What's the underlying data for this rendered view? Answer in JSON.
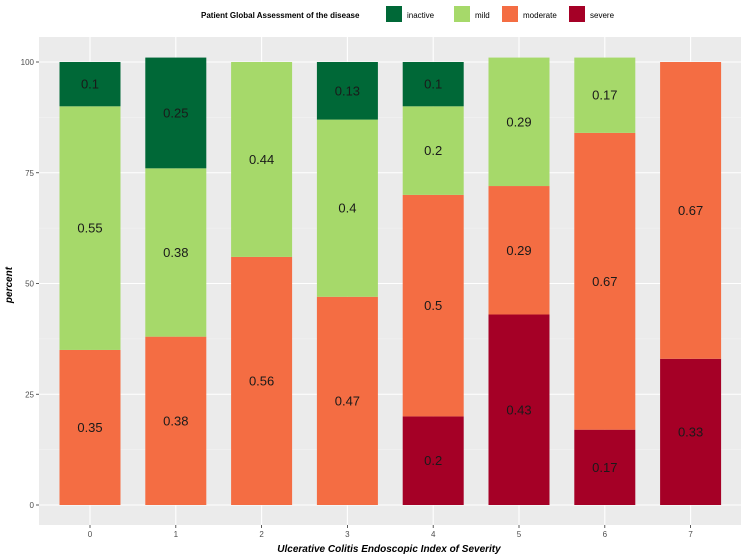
{
  "chart_data": {
    "type": "bar",
    "stacked": true,
    "title": "",
    "xlabel": "Ulcerative Colitis Endoscopic Index of Severity",
    "ylabel": "percent",
    "ylim": [
      0,
      103
    ],
    "yticks": [
      0,
      25,
      50,
      75,
      100
    ],
    "categories": [
      "0",
      "1",
      "2",
      "3",
      "4",
      "5",
      "6",
      "7"
    ],
    "legend": {
      "title": "Patient Global Assessment of the disease",
      "position": "top",
      "entries": [
        "inactive",
        "mild",
        "moderate",
        "severe"
      ]
    },
    "series": [
      {
        "name": "severe",
        "color": "#a50026",
        "values": [
          0,
          0,
          0,
          0,
          20,
          43,
          17,
          33
        ],
        "labels": [
          "",
          "",
          "",
          "",
          "0.2",
          "0.43",
          "0.17",
          "0.33"
        ]
      },
      {
        "name": "moderate",
        "color": "#f46d43",
        "values": [
          35,
          38,
          56,
          47,
          50,
          29,
          67,
          67
        ],
        "labels": [
          "0.35",
          "0.38",
          "0.56",
          "0.47",
          "0.5",
          "0.29",
          "0.67",
          "0.67"
        ]
      },
      {
        "name": "mild",
        "color": "#a6d96a",
        "values": [
          55,
          38,
          44,
          40,
          20,
          29,
          17,
          0
        ],
        "labels": [
          "0.55",
          "0.38",
          "0.44",
          "0.4",
          "0.2",
          "0.29",
          "0.17",
          ""
        ]
      },
      {
        "name": "inactive",
        "color": "#006837",
        "values": [
          10,
          25,
          0,
          13,
          10,
          0,
          0,
          0
        ],
        "labels": [
          "0.1",
          "0.25",
          "",
          "0.13",
          "0.1",
          "",
          "",
          ""
        ]
      }
    ]
  }
}
